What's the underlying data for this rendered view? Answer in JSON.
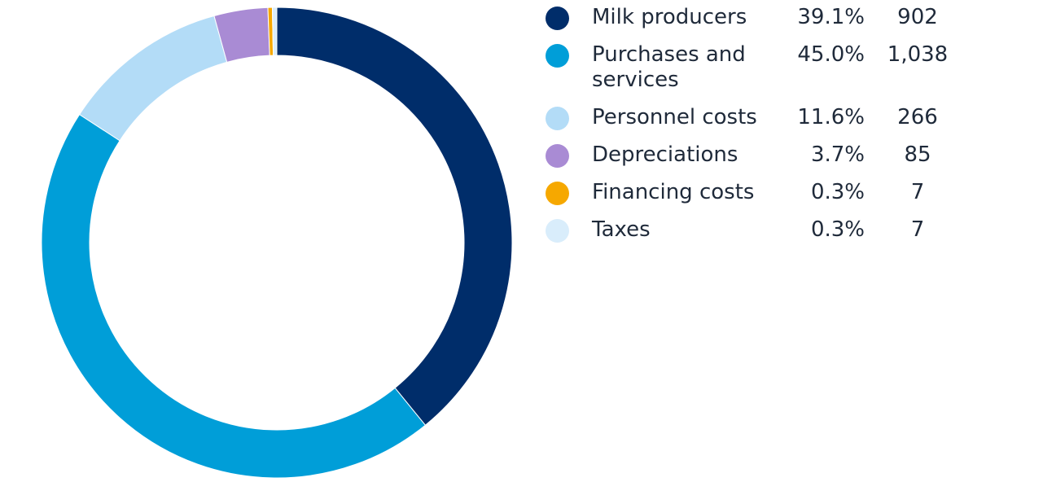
{
  "chart_data": {
    "type": "pie",
    "title": "",
    "categories": [
      "Milk producers",
      "Purchases and services",
      "Personnel costs",
      "Depreciations",
      "Financing costs",
      "Taxes"
    ],
    "percent_labels": [
      "39.1%",
      "45.0%",
      "11.6%",
      "3.7%",
      "0.3%",
      "0.3%"
    ],
    "value_labels": [
      "902",
      "1,038",
      "266",
      "85",
      "7",
      "7"
    ],
    "values": [
      902,
      1038,
      266,
      85,
      7,
      7
    ],
    "percents": [
      39.1,
      45.0,
      11.6,
      3.7,
      0.3,
      0.3
    ],
    "colors": [
      "#002d6a",
      "#009ed8",
      "#b3dcf7",
      "#a98bd4",
      "#f6a800",
      "#d9edfb"
    ],
    "style": "donut",
    "legend_position": "right"
  }
}
